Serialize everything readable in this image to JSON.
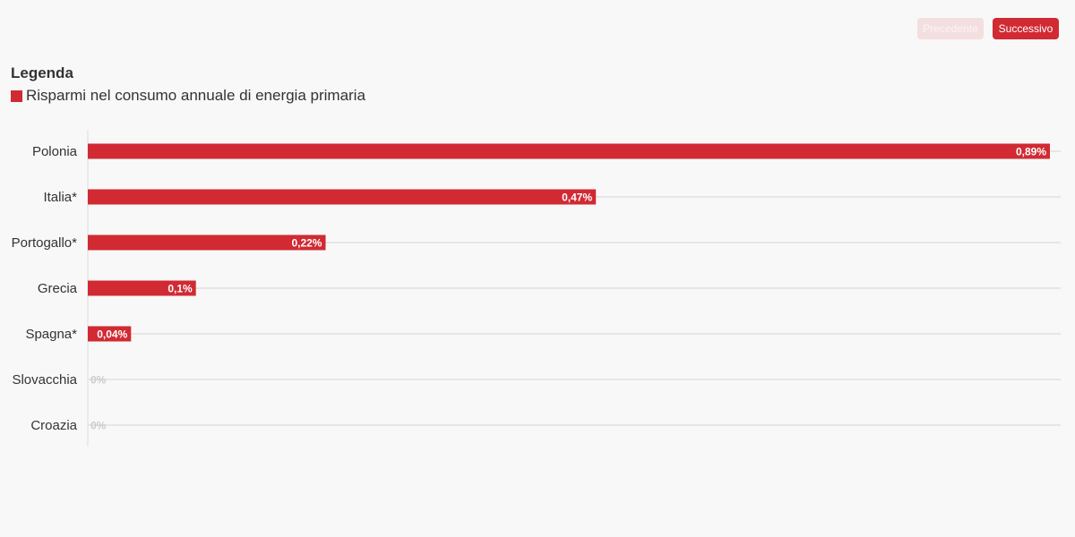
{
  "nav": {
    "prev_label": "Precedente",
    "next_label": "Successivo"
  },
  "legend": {
    "title": "Legenda",
    "items": [
      {
        "label": "Risparmi nel consumo annuale di energia primaria",
        "color": "#d12a33"
      }
    ]
  },
  "colors": {
    "bar": "#d12a33",
    "gridline": "#e6e6e6",
    "axis": "#dddddd",
    "zero_label": "#cccccc"
  },
  "chart_data": {
    "type": "bar",
    "orientation": "horizontal",
    "categories": [
      "Polonia",
      "Italia*",
      "Portogallo*",
      "Grecia",
      "Spagna*",
      "Slovacchia",
      "Croazia"
    ],
    "series": [
      {
        "name": "Risparmi nel consumo annuale di energia primaria",
        "values": [
          0.89,
          0.47,
          0.22,
          0.1,
          0.04,
          0,
          0
        ],
        "value_labels": [
          "0,89%",
          "0,47%",
          "0,22%",
          "0,1%",
          "0,04%",
          "0%",
          "0%"
        ]
      }
    ],
    "xlim": [
      0,
      0.9
    ],
    "grid": true,
    "legend_position": "top-left"
  }
}
